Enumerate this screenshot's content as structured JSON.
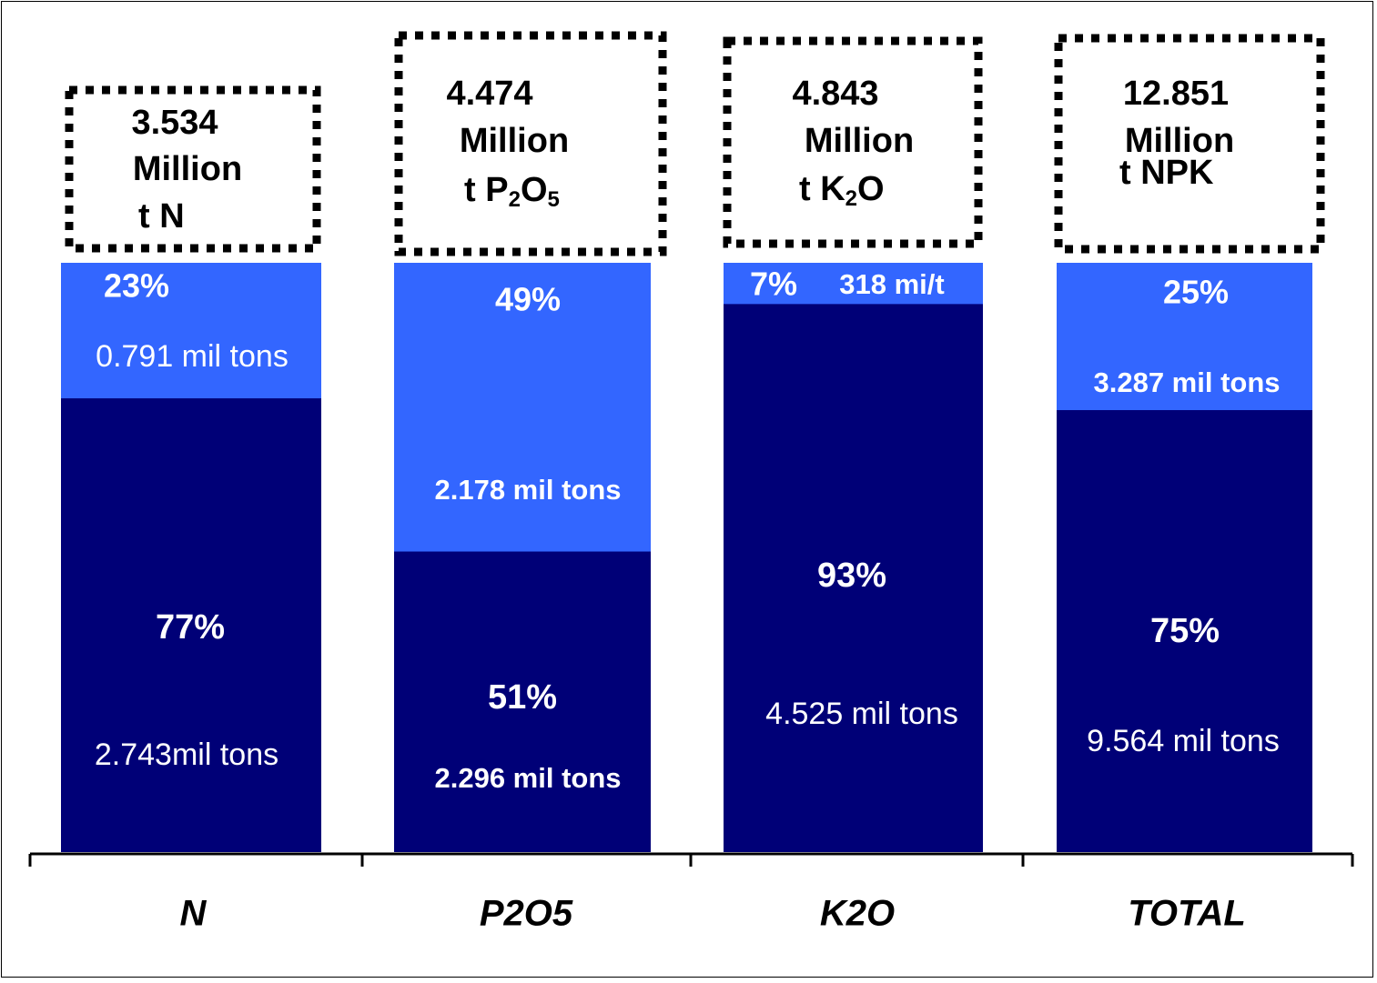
{
  "chart_data": {
    "type": "bar",
    "stacked": true,
    "normalized_percent": true,
    "categories": [
      "N",
      "P2O5",
      "K2O",
      "TOTAL"
    ],
    "colors": {
      "top": "#3366FF",
      "bottom": "#000077",
      "text": "#FFFFFF",
      "axis": "#000000"
    },
    "top_share_pct": [
      23,
      49,
      7,
      25
    ],
    "bottom_share_pct": [
      77,
      51,
      93,
      75
    ],
    "top_pct_label": [
      "23%",
      "49%",
      "7%",
      "25%"
    ],
    "bottom_pct_label": [
      "77%",
      "51%",
      "93%",
      "75%"
    ],
    "top_amount_label": [
      "0.791 mil tons",
      "2.178 mil tons",
      "318 mi/t",
      "3.287 mil tons"
    ],
    "bottom_amount_label": [
      "2.743mil tons",
      "2.296 mil tons",
      "4.525 mil tons",
      "9.564 mil tons"
    ],
    "totals": [
      {
        "value": "3.534",
        "unit": "Million",
        "t": "t",
        "formula": [
          "N"
        ]
      },
      {
        "value": "4.474",
        "unit": "Million",
        "t": "t",
        "formula": [
          "P",
          "2",
          "O",
          "5"
        ]
      },
      {
        "value": "4.843",
        "unit": "Million",
        "t": "t",
        "formula": [
          "K",
          "2",
          "O"
        ]
      },
      {
        "value": "12.851",
        "unit": "Million",
        "t": "t",
        "formula": [
          "NPK"
        ]
      }
    ],
    "legend": "none",
    "grid": false
  }
}
